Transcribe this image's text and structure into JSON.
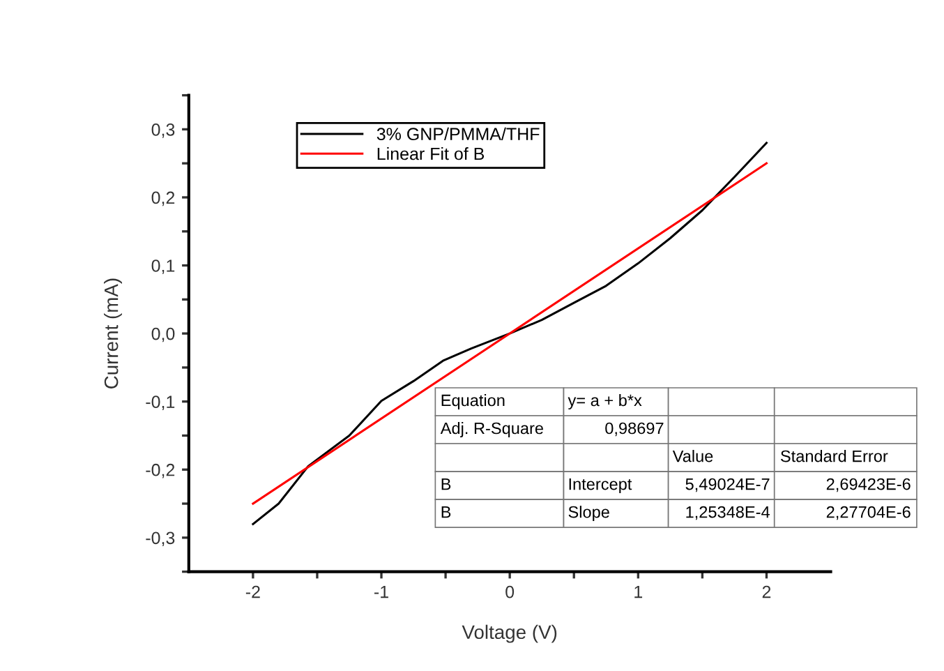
{
  "chart_data": {
    "type": "line",
    "xlabel": "Voltage (V)",
    "ylabel": "Current (mA)",
    "xlim": [
      -2.5,
      2.5
    ],
    "xticks": [
      {
        "value": -2,
        "label": "-2"
      },
      {
        "value": -1.5,
        "label": null
      },
      {
        "value": -1,
        "label": "-1"
      },
      {
        "value": -0.5,
        "label": null
      },
      {
        "value": 0,
        "label": "0"
      },
      {
        "value": 0.5,
        "label": null
      },
      {
        "value": 1,
        "label": "1"
      },
      {
        "value": 1.5,
        "label": null
      },
      {
        "value": 2,
        "label": "2"
      }
    ],
    "ylim": [
      -0.35,
      0.35
    ],
    "yticks": [
      {
        "value": -0.35,
        "label": null
      },
      {
        "value": -0.3,
        "label": "-0,3"
      },
      {
        "value": -0.25,
        "label": null
      },
      {
        "value": -0.2,
        "label": "-0,2"
      },
      {
        "value": -0.15,
        "label": null
      },
      {
        "value": -0.1,
        "label": "-0,1"
      },
      {
        "value": -0.05,
        "label": null
      },
      {
        "value": 0,
        "label": "0,0"
      },
      {
        "value": 0.05,
        "label": null
      },
      {
        "value": 0.1,
        "label": "0,1"
      },
      {
        "value": 0.15,
        "label": null
      },
      {
        "value": 0.2,
        "label": "0,2"
      },
      {
        "value": 0.25,
        "label": null
      },
      {
        "value": 0.3,
        "label": "0,3"
      },
      {
        "value": 0.35,
        "label": null
      }
    ],
    "grid": false,
    "legend": "top left",
    "marker": "none",
    "line_style": "solid",
    "series": [
      {
        "name": "3% GNP/PMMA/THF",
        "color": "#000000",
        "x": [
          -2,
          -1.8,
          -1.57,
          -1.25,
          -1,
          -0.75,
          -0.52,
          -0.3,
          0,
          0.25,
          0.5,
          0.75,
          1,
          1.25,
          1.5,
          1.75,
          2
        ],
        "values": [
          -0.28,
          -0.25,
          -0.195,
          -0.15,
          -0.099,
          -0.07,
          -0.04,
          -0.022,
          0,
          0.02,
          0.045,
          0.07,
          0.103,
          0.14,
          0.181,
          0.23,
          0.28
        ]
      },
      {
        "name": "Linear Fit of B",
        "color": "#ff0000",
        "x": [
          -2,
          2
        ],
        "values": [
          -0.25,
          0.25
        ]
      }
    ],
    "annotations": [
      "Equation",
      "y= a + b*x",
      "Adj. R-Square",
      "0,98697",
      "Value",
      "Standard Error",
      "B",
      "Intercept",
      "5,49024E-7",
      "2,69423E-6",
      "B",
      "Slope",
      "1,25348E-4",
      "2,27704E-6"
    ]
  }
}
